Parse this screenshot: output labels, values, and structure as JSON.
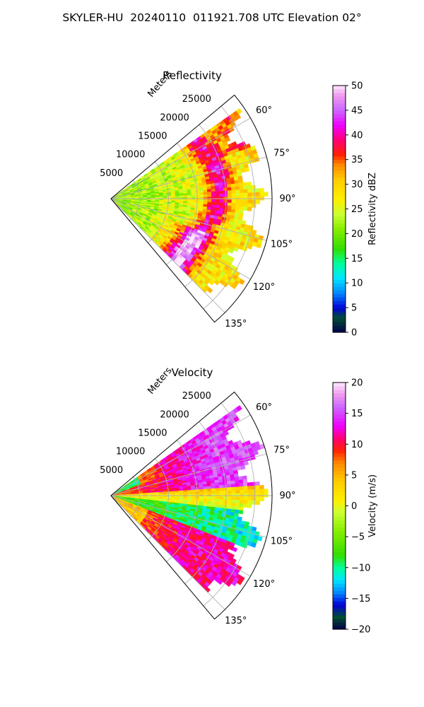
{
  "suptitle": "SKYLER-HU  20240110  011921.708 UTC Elevation 02°",
  "colors": {
    "grid": "#b0b0b0",
    "frame": "#000000",
    "text": "#000000"
  },
  "chart_data": [
    {
      "type": "heatmap",
      "projection": "polar-sector",
      "title": "Reflectivity",
      "range_label": "Meters",
      "range_ticks": [
        5000,
        10000,
        15000,
        20000,
        25000
      ],
      "range_tick_labels": [
        "5000",
        "10000",
        "15000",
        "20000",
        "25000"
      ],
      "rlim": [
        0,
        28000
      ],
      "theta_ticks": [
        60,
        75,
        90,
        105,
        120,
        135
      ],
      "theta_tick_labels": [
        "60°",
        "75°",
        "90°",
        "105°",
        "120°",
        "135°"
      ],
      "theta_range_deg": [
        50,
        140
      ],
      "data_extent_deg": [
        55,
        135
      ],
      "grid": true,
      "field": "reflectivity",
      "colorbar": {
        "label": "Reflectivity dBZ",
        "min": 0,
        "max": 50,
        "ticks": [
          0,
          5,
          10,
          15,
          20,
          25,
          30,
          35,
          40,
          45,
          50
        ],
        "tick_labels": [
          "0",
          "5",
          "10",
          "15",
          "20",
          "25",
          "30",
          "35",
          "40",
          "45",
          "50"
        ],
        "stops": [
          [
            0,
            "#00004a"
          ],
          [
            3,
            "#004d33"
          ],
          [
            5,
            "#0000d9"
          ],
          [
            8,
            "#0088ff"
          ],
          [
            11,
            "#00e5ff"
          ],
          [
            14,
            "#00ff9c"
          ],
          [
            17,
            "#33dd00"
          ],
          [
            21,
            "#88ee00"
          ],
          [
            24,
            "#ccff33"
          ],
          [
            27,
            "#ffee00"
          ],
          [
            31,
            "#ffcc00"
          ],
          [
            34,
            "#ff8800"
          ],
          [
            36,
            "#ff2200"
          ],
          [
            39,
            "#ff0077"
          ],
          [
            42,
            "#ee00ff"
          ],
          [
            45,
            "#cc66ff"
          ],
          [
            48,
            "#ee99ee"
          ],
          [
            50,
            "#ffe6ff"
          ]
        ]
      }
    },
    {
      "type": "heatmap",
      "projection": "polar-sector",
      "title": "Velocity",
      "range_label": "Meters",
      "range_ticks": [
        5000,
        10000,
        15000,
        20000,
        25000
      ],
      "range_tick_labels": [
        "5000",
        "10000",
        "15000",
        "20000",
        "25000"
      ],
      "rlim": [
        0,
        28000
      ],
      "theta_ticks": [
        60,
        75,
        90,
        105,
        120,
        135
      ],
      "theta_tick_labels": [
        "60°",
        "75°",
        "90°",
        "105°",
        "120°",
        "135°"
      ],
      "theta_range_deg": [
        50,
        140
      ],
      "data_extent_deg": [
        55,
        135
      ],
      "grid": true,
      "field": "velocity",
      "colorbar": {
        "label": "Velocity (m/s)",
        "min": -20,
        "max": 20,
        "ticks": [
          -20,
          -15,
          -10,
          -5,
          0,
          5,
          10,
          15,
          20
        ],
        "tick_labels": [
          "−20",
          "−15",
          "−10",
          "−5",
          "0",
          "5",
          "10",
          "15",
          "20"
        ],
        "stops": [
          [
            -20,
            "#00004a"
          ],
          [
            -18,
            "#004d33"
          ],
          [
            -16,
            "#0000d9"
          ],
          [
            -14,
            "#0088ff"
          ],
          [
            -12,
            "#00e5ff"
          ],
          [
            -10,
            "#00ff9c"
          ],
          [
            -8,
            "#33dd00"
          ],
          [
            -4,
            "#88ee00"
          ],
          [
            -1,
            "#ccff33"
          ],
          [
            1,
            "#ffee00"
          ],
          [
            4,
            "#ffcc00"
          ],
          [
            7,
            "#ff8800"
          ],
          [
            9,
            "#ff2200"
          ],
          [
            11,
            "#ff0077"
          ],
          [
            13,
            "#ee00ff"
          ],
          [
            16,
            "#cc66ff"
          ],
          [
            18,
            "#ee99ee"
          ],
          [
            20,
            "#ffe6ff"
          ]
        ]
      }
    }
  ]
}
